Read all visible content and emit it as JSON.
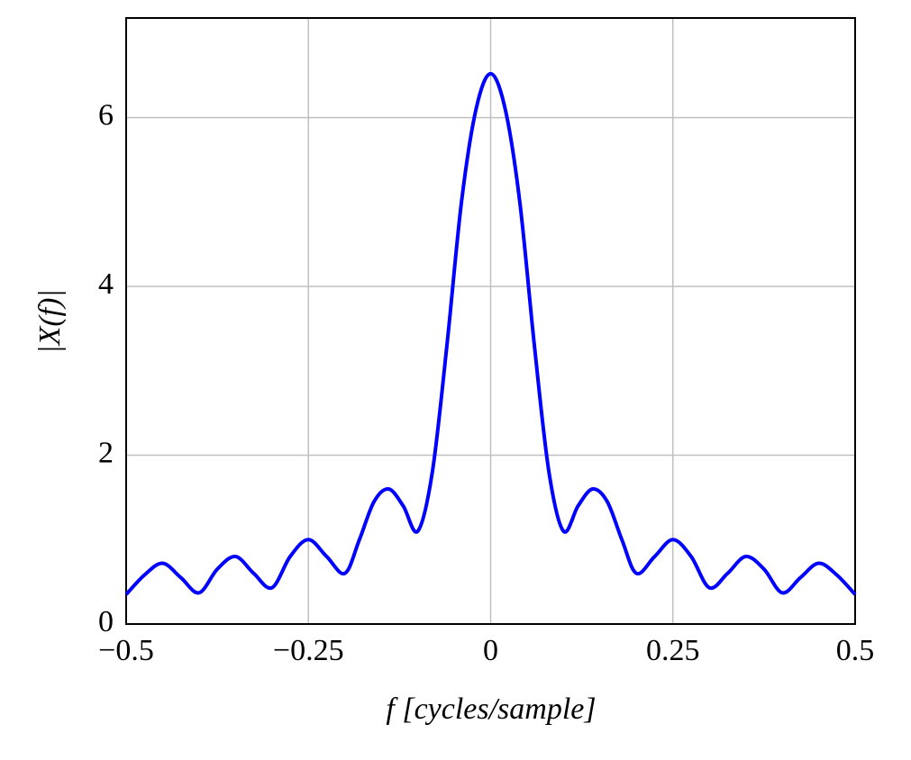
{
  "chart_data": {
    "type": "line",
    "x_label": "f [cycles/sample]",
    "y_label": "|X(f)|",
    "x": [
      -0.5,
      -0.475,
      -0.45,
      -0.425,
      -0.4,
      -0.375,
      -0.35,
      -0.325,
      -0.3,
      -0.275,
      -0.25,
      -0.225,
      -0.2,
      -0.18,
      -0.16,
      -0.14,
      -0.12,
      -0.1,
      -0.08,
      -0.06,
      -0.04,
      -0.02,
      0,
      0.02,
      0.04,
      0.06,
      0.08,
      0.1,
      0.12,
      0.14,
      0.16,
      0.18,
      0.2,
      0.225,
      0.25,
      0.275,
      0.3,
      0.325,
      0.35,
      0.375,
      0.4,
      0.425,
      0.45,
      0.475,
      0.5
    ],
    "series": [
      {
        "color": "#0000ff",
        "values": [
          0.35,
          0.58,
          0.72,
          0.55,
          0.37,
          0.65,
          0.8,
          0.6,
          0.43,
          0.8,
          1.0,
          0.8,
          0.6,
          1.0,
          1.45,
          1.6,
          1.4,
          1.1,
          1.8,
          3.3,
          5.0,
          6.1,
          6.52,
          6.1,
          5.0,
          3.3,
          1.8,
          1.1,
          1.4,
          1.6,
          1.45,
          1.0,
          0.6,
          0.8,
          1.0,
          0.8,
          0.43,
          0.6,
          0.8,
          0.65,
          0.37,
          0.55,
          0.72,
          0.58,
          0.35
        ]
      }
    ],
    "xlim": [
      -0.5,
      0.5
    ],
    "xticks": [
      {
        "value": -0.5,
        "label": "−0.5"
      },
      {
        "value": -0.25,
        "label": "−0.25"
      },
      0,
      0.25,
      0.5
    ],
    "ylim": [
      0,
      7.18
    ],
    "yticks": [
      0,
      2,
      4,
      6
    ],
    "grid": true
  }
}
